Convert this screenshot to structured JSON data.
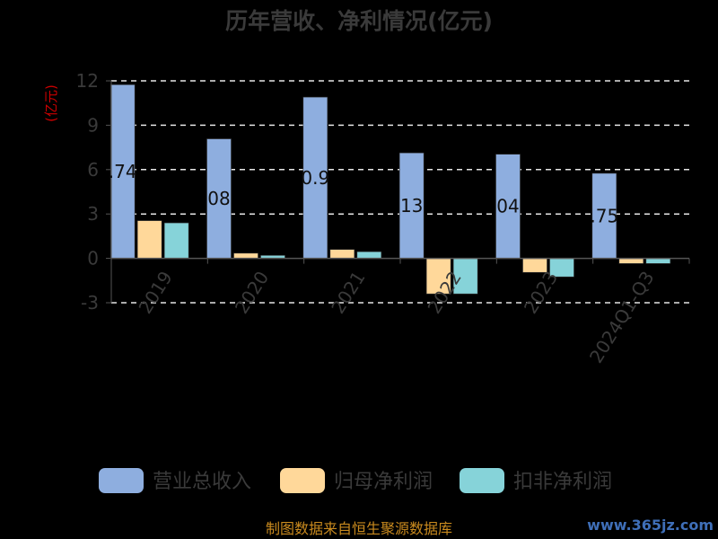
{
  "chart_data": {
    "type": "bar",
    "title": "历年营收、净利情况(亿元)",
    "ylabel": "(亿元)",
    "xlabel": "",
    "categories": [
      "2019",
      "2020",
      "2021",
      "2022",
      "2023",
      "2024Q1-Q3"
    ],
    "yticks": [
      12,
      9,
      6,
      3,
      0,
      -3
    ],
    "ylim": [
      -3,
      12
    ],
    "grid": true,
    "legend_position": "bottom",
    "series": [
      {
        "name": "营业总收入",
        "color": "#8eaedf",
        "values": [
          11.74,
          8.08,
          10.9,
          7.13,
          7.04,
          5.75
        ]
      },
      {
        "name": "归母净利润",
        "color": "#ffd89a",
        "values": [
          2.55,
          0.35,
          0.6,
          -2.4,
          -0.95,
          -0.35
        ]
      },
      {
        "name": "扣非净利润",
        "color": "#86d3d9",
        "values": [
          2.4,
          0.2,
          0.45,
          -2.4,
          -1.25,
          -0.35
        ]
      }
    ],
    "data_labels": [
      ".74",
      "08",
      "0.9",
      "13",
      "04",
      ".75"
    ]
  },
  "footer": {
    "source": "制图数据来自恒生聚源数据库",
    "watermark": "www.365jz.com"
  }
}
